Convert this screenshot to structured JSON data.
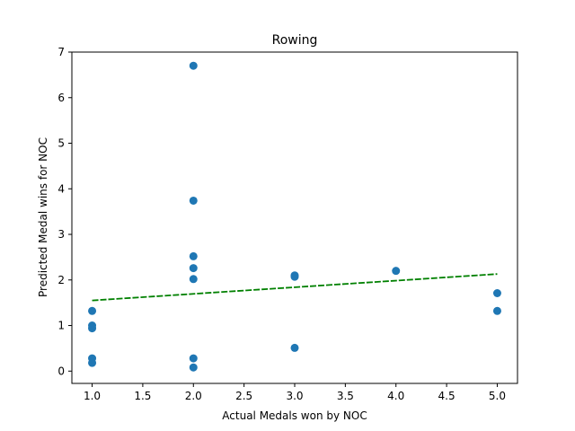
{
  "chart_data": {
    "type": "scatter",
    "title": "Rowing",
    "xlabel": "Actual Medals won by NOC",
    "ylabel": "Predicted Medal wins for NOC",
    "xlim": [
      0.8,
      5.2
    ],
    "ylim": [
      -0.27,
      7.0
    ],
    "x_ticks": [
      1.0,
      1.5,
      2.0,
      2.5,
      3.0,
      3.5,
      4.0,
      4.5,
      5.0
    ],
    "x_tick_labels": [
      "1.0",
      "1.5",
      "2.0",
      "2.5",
      "3.0",
      "3.5",
      "4.0",
      "4.5",
      "5.0"
    ],
    "y_ticks": [
      0,
      1,
      2,
      3,
      4,
      5,
      6,
      7
    ],
    "y_tick_labels": [
      "0",
      "1",
      "2",
      "3",
      "4",
      "5",
      "6",
      "7"
    ],
    "grid": false,
    "series": [
      {
        "kind": "scatter",
        "color": "#1f77b4",
        "points": [
          {
            "x": 1,
            "y": 1.32
          },
          {
            "x": 1,
            "y": 1.0
          },
          {
            "x": 1,
            "y": 0.94
          },
          {
            "x": 1,
            "y": 0.28
          },
          {
            "x": 1,
            "y": 0.18
          },
          {
            "x": 2,
            "y": 6.7
          },
          {
            "x": 2,
            "y": 3.74
          },
          {
            "x": 2,
            "y": 2.52
          },
          {
            "x": 2,
            "y": 2.26
          },
          {
            "x": 2,
            "y": 2.02
          },
          {
            "x": 2,
            "y": 0.28
          },
          {
            "x": 2,
            "y": 0.08
          },
          {
            "x": 3,
            "y": 2.1
          },
          {
            "x": 3,
            "y": 2.07
          },
          {
            "x": 3,
            "y": 0.51
          },
          {
            "x": 4,
            "y": 2.2
          },
          {
            "x": 5,
            "y": 1.71
          },
          {
            "x": 5,
            "y": 1.32
          }
        ]
      },
      {
        "kind": "line",
        "style": "dashed",
        "color": "#008000",
        "points": [
          {
            "x": 1,
            "y": 1.55
          },
          {
            "x": 5,
            "y": 2.13
          }
        ]
      }
    ]
  }
}
